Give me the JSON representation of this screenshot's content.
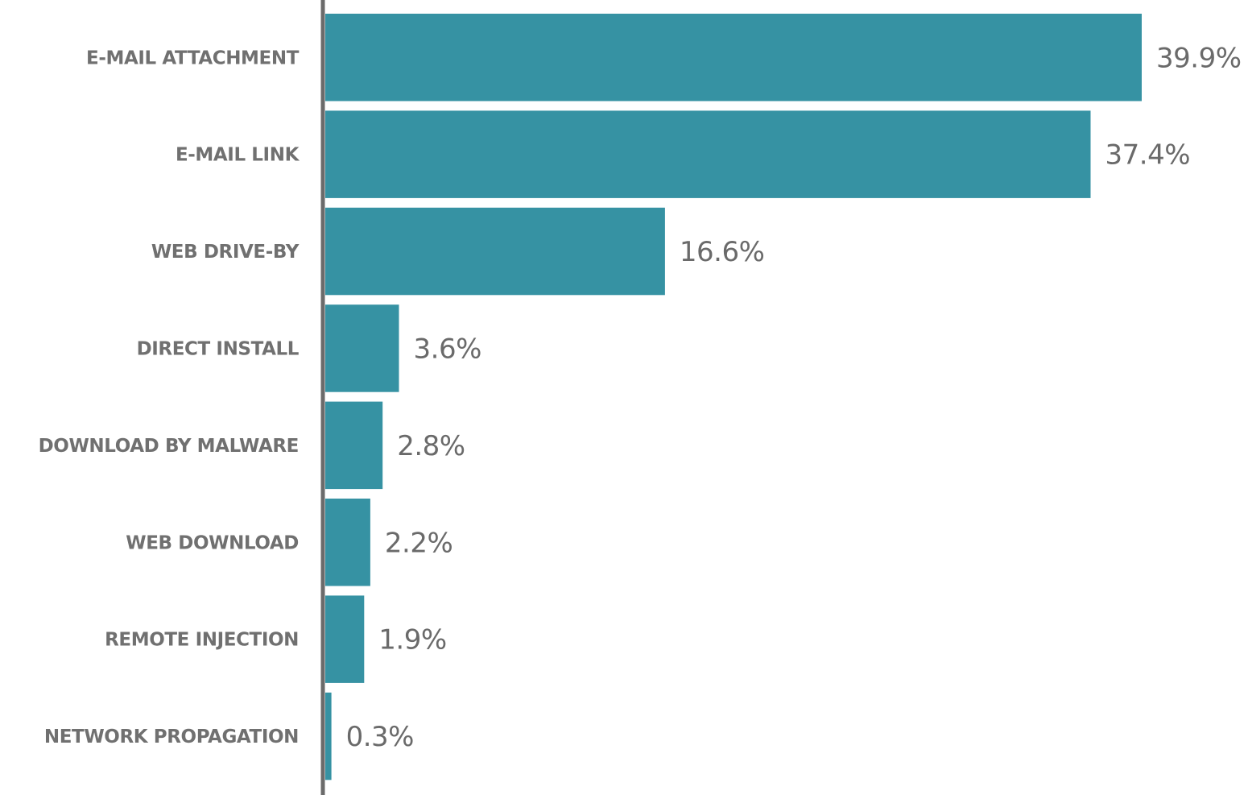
{
  "chart_data": {
    "type": "bar",
    "orientation": "horizontal",
    "categories": [
      "E-MAIL ATTACHMENT",
      "E-MAIL LINK",
      "WEB DRIVE-BY",
      "DIRECT INSTALL",
      "DOWNLOAD BY MALWARE",
      "WEB DOWNLOAD",
      "REMOTE INJECTION",
      "NETWORK PROPAGATION"
    ],
    "values": [
      39.9,
      37.4,
      16.6,
      3.6,
      2.8,
      2.2,
      1.9,
      0.3
    ],
    "value_labels": [
      "39.9%",
      "37.4%",
      "16.6%",
      "3.6%",
      "2.8%",
      "2.2%",
      "1.9%",
      "0.3%"
    ],
    "unit": "%",
    "title": "",
    "xlabel": "",
    "ylabel": "",
    "xlim": [
      0,
      39.9
    ],
    "grid": false,
    "legend": "none",
    "colors": {
      "bar": "#3692a3",
      "axis": "#6b6b6b",
      "category_text": "#707070",
      "value_text": "#6a6a6a"
    }
  }
}
